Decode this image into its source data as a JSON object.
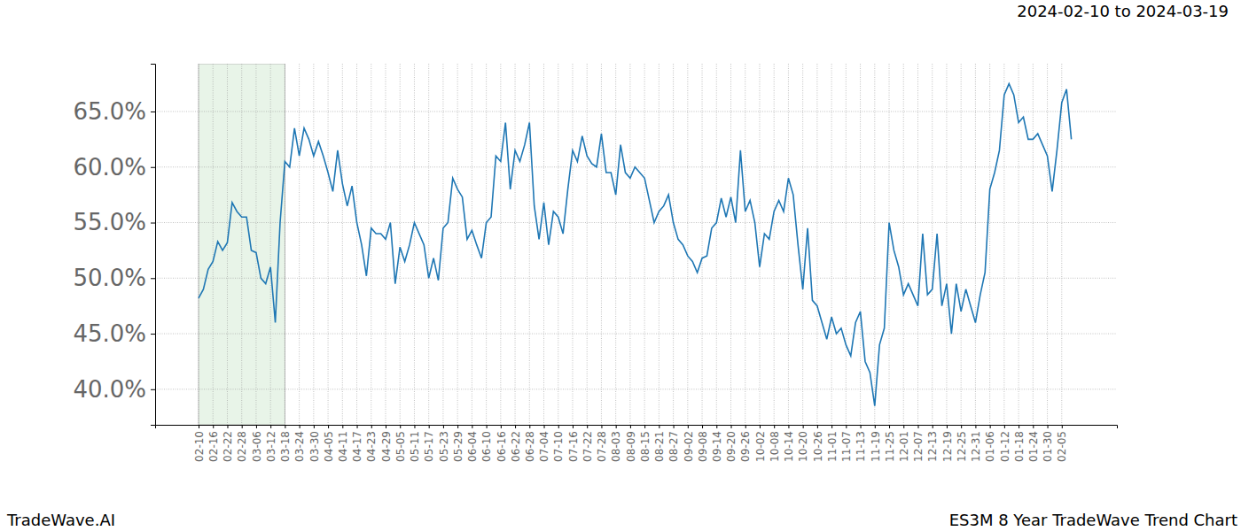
{
  "chart_data": {
    "type": "line",
    "title": "2024-02-10 to 2024-03-19",
    "annotations": [
      "TradeWave.AI",
      "ES3M 8 Year TradeWave Trend Chart"
    ],
    "color": "#1f77b4",
    "grid": true,
    "highlight": {
      "start": "02-10",
      "end": "03-18"
    },
    "categories": [
      "02-10",
      null,
      null,
      "02-16",
      null,
      null,
      "02-22",
      null,
      null,
      "02-28",
      null,
      null,
      "03-06",
      null,
      null,
      "03-12",
      null,
      null,
      "03-18",
      null,
      null,
      "03-24",
      null,
      null,
      "03-30",
      null,
      null,
      "04-05",
      null,
      null,
      "04-11",
      null,
      null,
      "04-17",
      null,
      null,
      "04-23",
      null,
      null,
      "04-29",
      null,
      null,
      "05-05",
      null,
      null,
      "05-11",
      null,
      null,
      "05-17",
      null,
      null,
      "05-23",
      null,
      null,
      "05-29",
      null,
      null,
      "06-04",
      null,
      null,
      "06-10",
      null,
      null,
      "06-16",
      null,
      null,
      "06-22",
      null,
      null,
      "06-28",
      null,
      null,
      "07-04",
      null,
      null,
      "07-10",
      null,
      null,
      "07-16",
      null,
      null,
      "07-22",
      null,
      null,
      "07-28",
      null,
      null,
      "08-03",
      null,
      null,
      "08-09",
      null,
      null,
      "08-15",
      null,
      null,
      "08-21",
      null,
      null,
      "08-27",
      null,
      null,
      "09-02",
      null,
      null,
      "09-08",
      null,
      null,
      "09-14",
      null,
      null,
      "09-20",
      null,
      null,
      "09-26",
      null,
      null,
      "10-02",
      null,
      null,
      "10-08",
      null,
      null,
      "10-14",
      null,
      null,
      "10-20",
      null,
      null,
      "10-26",
      null,
      null,
      "11-01",
      null,
      null,
      "11-07",
      null,
      null,
      "11-13",
      null,
      null,
      "11-19",
      null,
      null,
      "11-25",
      null,
      null,
      "12-01",
      null,
      null,
      "12-07",
      null,
      null,
      "12-13",
      null,
      null,
      "12-19",
      null,
      null,
      "12-25",
      null,
      null,
      "12-31",
      null,
      null,
      "01-06",
      null,
      null,
      "01-12",
      null,
      null,
      "01-18",
      null,
      null,
      "01-24",
      null,
      null,
      "01-30",
      null,
      null,
      "02-05",
      null,
      null
    ],
    "values": [
      48.2,
      49.0,
      50.8,
      51.5,
      53.3,
      52.5,
      53.2,
      56.8,
      56.0,
      55.5,
      55.5,
      52.5,
      52.3,
      50.0,
      49.5,
      51.0,
      46.0,
      55.0,
      60.5,
      60.0,
      63.5,
      61.0,
      63.5,
      62.5,
      61.0,
      62.3,
      61.0,
      59.5,
      57.8,
      61.5,
      58.5,
      56.5,
      58.3,
      55.0,
      53.0,
      50.2,
      54.5,
      54.0,
      54.0,
      53.5,
      55.0,
      49.5,
      52.8,
      51.5,
      53.0,
      55.0,
      54.0,
      53.0,
      50.0,
      51.8,
      49.8,
      54.5,
      55.0,
      59.0,
      58.0,
      57.3,
      53.5,
      54.3,
      53.0,
      51.8,
      55.0,
      55.5,
      61.0,
      60.5,
      64.0,
      58.0,
      61.5,
      60.5,
      62.0,
      64.0,
      56.5,
      53.5,
      56.8,
      53.0,
      56.0,
      55.5,
      54.0,
      58.0,
      61.5,
      60.5,
      62.8,
      61.0,
      60.3,
      60.0,
      63.0,
      59.5,
      59.5,
      57.5,
      62.0,
      59.5,
      59.0,
      60.0,
      59.5,
      59.0,
      57.0,
      55.0,
      56.0,
      56.5,
      57.5,
      55.0,
      53.5,
      53.0,
      52.0,
      51.5,
      50.5,
      51.8,
      52.0,
      54.5,
      55.0,
      57.2,
      55.5,
      57.3,
      55.0,
      61.5,
      56.0,
      57.0,
      55.0,
      51.0,
      54.0,
      53.5,
      56.0,
      57.0,
      56.0,
      59.0,
      57.5,
      53.0,
      49.0,
      54.5,
      48.0,
      47.5,
      46.0,
      44.5,
      46.5,
      45.0,
      45.5,
      44.0,
      43.0,
      46.0,
      47.0,
      42.5,
      41.5,
      38.5,
      44.0,
      45.5,
      55.0,
      52.5,
      51.0,
      48.5,
      49.5,
      48.5,
      47.5,
      54.0,
      48.5,
      49.0,
      54.0,
      47.5,
      49.5,
      45.0,
      49.5,
      47.0,
      49.0,
      47.5,
      46.0,
      48.5,
      50.5,
      58.0,
      59.5,
      61.5,
      66.5,
      67.5,
      66.5,
      64.0,
      64.5,
      62.5,
      62.5,
      63.0,
      62.0,
      61.0,
      57.8,
      61.5,
      65.8,
      67.0,
      62.5
    ],
    "ylim": [
      36.8,
      69.3
    ],
    "yticks": [
      {
        "value": 40,
        "label": "40.0%"
      },
      {
        "value": 45,
        "label": "45.0%"
      },
      {
        "value": 50,
        "label": "50.0%"
      },
      {
        "value": 55,
        "label": "55.0%"
      },
      {
        "value": 60,
        "label": "60.0%"
      },
      {
        "value": 65,
        "label": "65.0%"
      }
    ]
  }
}
